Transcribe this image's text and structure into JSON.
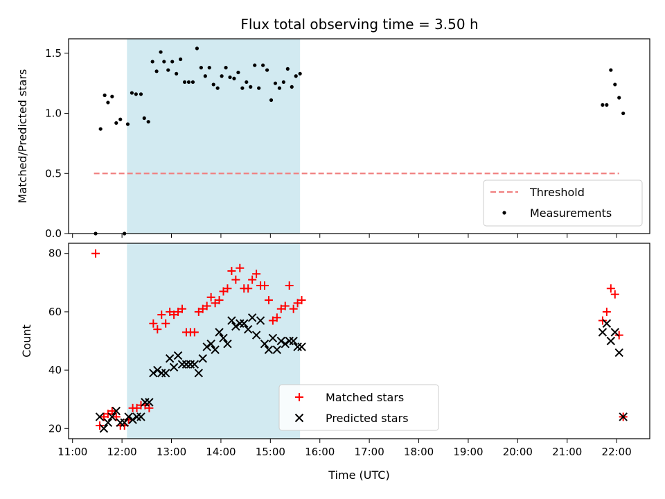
{
  "title": "Flux total observing time = 3.50 h",
  "colors": {
    "shade": "#add8e6",
    "threshold": "#f08080",
    "matched": "#ff0000",
    "predicted": "#000000",
    "measurement": "#000000"
  },
  "chart_data": [
    {
      "type": "scatter",
      "panel": "top",
      "ylabel": "Matched/Predicted stars",
      "xlabel": "",
      "xlim_hours": [
        10.92,
        22.67
      ],
      "ylim": [
        0,
        1.62
      ],
      "yticks": [
        0.0,
        0.5,
        1.0,
        1.5
      ],
      "ytick_labels": [
        "0.0",
        "0.5",
        "1.0",
        "1.5"
      ],
      "shaded_span": [
        "12:06",
        "15:36"
      ],
      "legend": {
        "placement": "lower right",
        "entries": [
          "Threshold",
          "Measurements"
        ]
      },
      "threshold": {
        "name": "Threshold",
        "value": 0.5,
        "x_range": [
          "11:26",
          "22:03"
        ],
        "style": "dashed"
      },
      "series": [
        {
          "name": "Measurements",
          "marker": "dot",
          "points": [
            [
              "11:28",
              0.0
            ],
            [
              "11:34",
              0.87
            ],
            [
              "11:39",
              1.15
            ],
            [
              "11:43",
              1.09
            ],
            [
              "11:48",
              1.14
            ],
            [
              "11:53",
              0.92
            ],
            [
              "11:58",
              0.95
            ],
            [
              "12:03",
              0.0
            ],
            [
              "12:07",
              0.91
            ],
            [
              "12:12",
              1.17
            ],
            [
              "12:17",
              1.16
            ],
            [
              "12:23",
              1.16
            ],
            [
              "12:27",
              0.96
            ],
            [
              "12:32",
              0.93
            ],
            [
              "12:37",
              1.43
            ],
            [
              "12:42",
              1.35
            ],
            [
              "12:47",
              1.51
            ],
            [
              "12:51",
              1.43
            ],
            [
              "12:56",
              1.36
            ],
            [
              "13:01",
              1.43
            ],
            [
              "13:06",
              1.33
            ],
            [
              "13:11",
              1.45
            ],
            [
              "13:16",
              1.26
            ],
            [
              "13:21",
              1.26
            ],
            [
              "13:26",
              1.26
            ],
            [
              "13:31",
              1.54
            ],
            [
              "13:36",
              1.38
            ],
            [
              "13:41",
              1.31
            ],
            [
              "13:46",
              1.38
            ],
            [
              "13:51",
              1.24
            ],
            [
              "13:56",
              1.21
            ],
            [
              "14:01",
              1.31
            ],
            [
              "14:06",
              1.38
            ],
            [
              "14:11",
              1.3
            ],
            [
              "14:16",
              1.29
            ],
            [
              "14:21",
              1.34
            ],
            [
              "14:26",
              1.21
            ],
            [
              "14:31",
              1.26
            ],
            [
              "14:36",
              1.22
            ],
            [
              "14:41",
              1.4
            ],
            [
              "14:46",
              1.21
            ],
            [
              "14:51",
              1.4
            ],
            [
              "14:56",
              1.36
            ],
            [
              "15:01",
              1.11
            ],
            [
              "15:06",
              1.25
            ],
            [
              "15:11",
              1.21
            ],
            [
              "15:16",
              1.26
            ],
            [
              "15:21",
              1.37
            ],
            [
              "15:26",
              1.22
            ],
            [
              "15:31",
              1.31
            ],
            [
              "15:36",
              1.33
            ],
            [
              "21:43",
              1.07
            ],
            [
              "21:48",
              1.07
            ],
            [
              "21:53",
              1.36
            ],
            [
              "21:58",
              1.24
            ],
            [
              "22:03",
              1.13
            ],
            [
              "22:08",
              1.0
            ]
          ]
        }
      ]
    },
    {
      "type": "scatter",
      "panel": "bottom",
      "ylabel": "Count",
      "xlabel": "Time (UTC)",
      "xlim_hours": [
        10.92,
        22.67
      ],
      "ylim": [
        16.5,
        83.5
      ],
      "yticks": [
        20,
        40,
        60,
        80
      ],
      "ytick_labels": [
        "20",
        "40",
        "60",
        "80"
      ],
      "xtick_labels": [
        "11:00",
        "12:00",
        "13:00",
        "14:00",
        "15:00",
        "16:00",
        "17:00",
        "18:00",
        "19:00",
        "20:00",
        "21:00",
        "22:00"
      ],
      "shaded_span": [
        "12:06",
        "15:36"
      ],
      "legend": {
        "placement": "lower center",
        "entries": [
          "Matched stars",
          "Predicted stars"
        ]
      },
      "series": [
        {
          "name": "Matched stars",
          "marker": "plus",
          "points": [
            [
              "11:28",
              80
            ],
            [
              "11:33",
              21
            ],
            [
              "11:38",
              24
            ],
            [
              "11:43",
              25
            ],
            [
              "11:48",
              26
            ],
            [
              "11:53",
              24
            ],
            [
              "11:58",
              21
            ],
            [
              "12:03",
              21
            ],
            [
              "12:08",
              23
            ],
            [
              "12:13",
              27
            ],
            [
              "12:18",
              27
            ],
            [
              "12:23",
              28
            ],
            [
              "12:28",
              28
            ],
            [
              "12:33",
              27
            ],
            [
              "12:38",
              56
            ],
            [
              "12:43",
              54
            ],
            [
              "12:48",
              59
            ],
            [
              "12:53",
              56
            ],
            [
              "12:58",
              60
            ],
            [
              "13:03",
              59
            ],
            [
              "13:08",
              60
            ],
            [
              "13:13",
              61
            ],
            [
              "13:18",
              53
            ],
            [
              "13:23",
              53
            ],
            [
              "13:28",
              53
            ],
            [
              "13:33",
              60
            ],
            [
              "13:38",
              61
            ],
            [
              "13:43",
              62
            ],
            [
              "13:48",
              65
            ],
            [
              "13:53",
              63
            ],
            [
              "13:58",
              64
            ],
            [
              "14:03",
              67
            ],
            [
              "14:08",
              68
            ],
            [
              "14:13",
              74
            ],
            [
              "14:18",
              71
            ],
            [
              "14:23",
              75
            ],
            [
              "14:28",
              68
            ],
            [
              "14:33",
              68
            ],
            [
              "14:38",
              71
            ],
            [
              "14:43",
              73
            ],
            [
              "14:48",
              69
            ],
            [
              "14:53",
              69
            ],
            [
              "14:58",
              64
            ],
            [
              "15:03",
              57
            ],
            [
              "15:08",
              58
            ],
            [
              "15:13",
              61
            ],
            [
              "15:18",
              62
            ],
            [
              "15:23",
              69
            ],
            [
              "15:28",
              61
            ],
            [
              "15:33",
              63
            ],
            [
              "15:38",
              64
            ],
            [
              "21:43",
              57
            ],
            [
              "21:48",
              60
            ],
            [
              "21:53",
              68
            ],
            [
              "21:58",
              66
            ],
            [
              "22:03",
              52
            ],
            [
              "22:08",
              24
            ]
          ]
        },
        {
          "name": "Predicted stars",
          "marker": "x",
          "points": [
            [
              "11:33",
              24
            ],
            [
              "11:38",
              20
            ],
            [
              "11:43",
              22
            ],
            [
              "11:48",
              24
            ],
            [
              "11:53",
              26
            ],
            [
              "11:58",
              22
            ],
            [
              "12:03",
              22
            ],
            [
              "12:08",
              24
            ],
            [
              "12:13",
              23
            ],
            [
              "12:18",
              24
            ],
            [
              "12:23",
              24
            ],
            [
              "12:28",
              29
            ],
            [
              "12:33",
              29
            ],
            [
              "12:38",
              39
            ],
            [
              "12:43",
              40
            ],
            [
              "12:48",
              39
            ],
            [
              "12:53",
              39
            ],
            [
              "12:58",
              44
            ],
            [
              "13:03",
              41
            ],
            [
              "13:08",
              45
            ],
            [
              "13:13",
              42
            ],
            [
              "13:18",
              42
            ],
            [
              "13:23",
              42
            ],
            [
              "13:28",
              42
            ],
            [
              "13:33",
              39
            ],
            [
              "13:38",
              44
            ],
            [
              "13:43",
              48
            ],
            [
              "13:48",
              49
            ],
            [
              "13:53",
              47
            ],
            [
              "13:58",
              53
            ],
            [
              "14:03",
              51
            ],
            [
              "14:08",
              49
            ],
            [
              "14:13",
              57
            ],
            [
              "14:18",
              55
            ],
            [
              "14:23",
              56
            ],
            [
              "14:28",
              56
            ],
            [
              "14:33",
              54
            ],
            [
              "14:38",
              58
            ],
            [
              "14:43",
              52
            ],
            [
              "14:48",
              57
            ],
            [
              "14:53",
              49
            ],
            [
              "14:58",
              47
            ],
            [
              "15:03",
              51
            ],
            [
              "15:08",
              47
            ],
            [
              "15:13",
              50
            ],
            [
              "15:18",
              49
            ],
            [
              "15:23",
              50
            ],
            [
              "15:28",
              50
            ],
            [
              "15:33",
              48
            ],
            [
              "15:38",
              48
            ],
            [
              "21:43",
              53
            ],
            [
              "21:48",
              56
            ],
            [
              "21:53",
              50
            ],
            [
              "21:58",
              53
            ],
            [
              "22:03",
              46
            ],
            [
              "22:08",
              24
            ]
          ]
        }
      ]
    }
  ]
}
